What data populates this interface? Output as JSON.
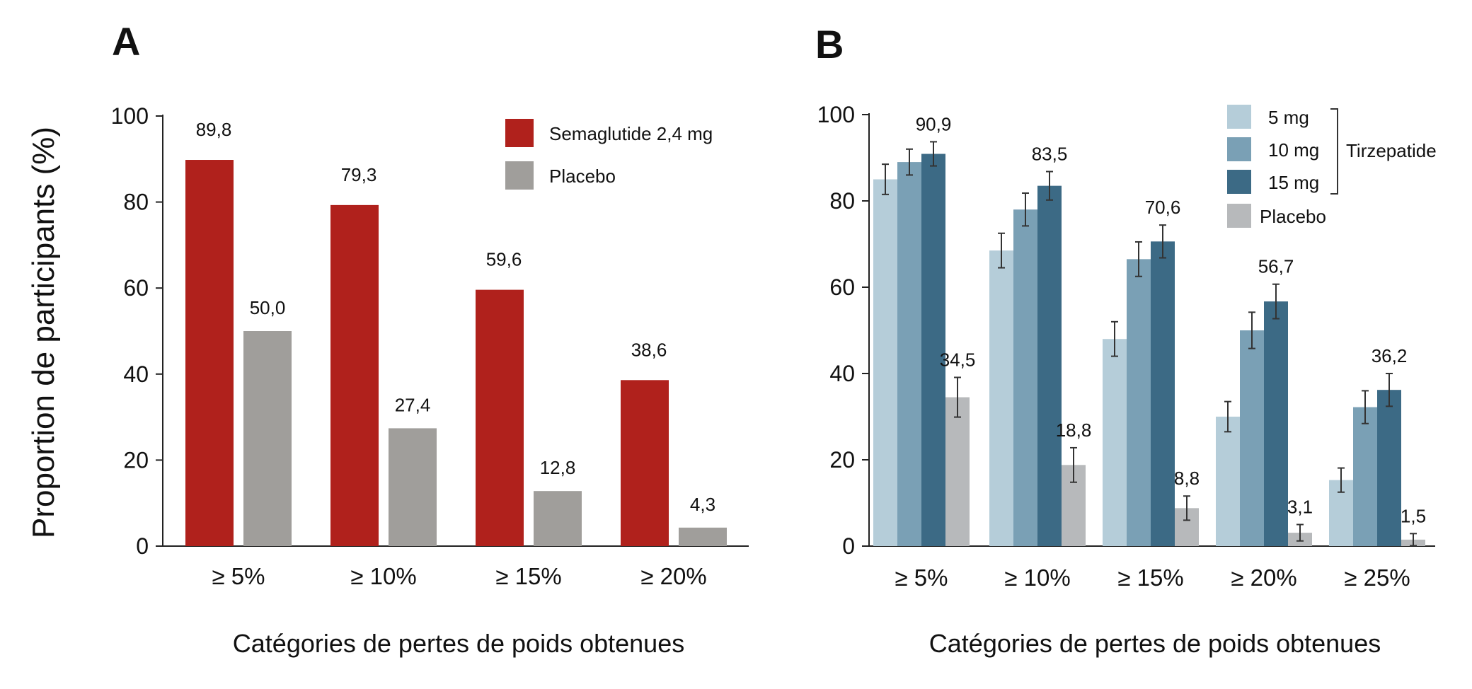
{
  "chart_data": [
    {
      "panel": "A",
      "type": "bar",
      "categories": [
        "≥ 5%",
        "≥ 10%",
        "≥ 15%",
        "≥ 20%"
      ],
      "series": [
        {
          "name": "Semaglutide 2,4 mg",
          "values": [
            89.8,
            79.3,
            59.6,
            38.6
          ],
          "labels": [
            "89,8",
            "79,3",
            "59,6",
            "38,6"
          ],
          "color": "#b0211c"
        },
        {
          "name": "Placebo",
          "values": [
            50.0,
            27.4,
            12.8,
            4.3
          ],
          "labels": [
            "50,0",
            "27,4",
            "12,8",
            "4,3"
          ],
          "color": "#a09e9b"
        }
      ],
      "xlabel": "Catégories de pertes de poids obtenues",
      "ylabel": "Proportion de participants (%)",
      "ylim": [
        0,
        100
      ],
      "yticks": [
        "0",
        "20",
        "40",
        "60",
        "80",
        "100"
      ],
      "legend_position": "top-right",
      "grid": false
    },
    {
      "panel": "B",
      "type": "bar",
      "categories": [
        "≥ 5%",
        "≥ 10%",
        "≥ 15%",
        "≥ 20%",
        "≥ 25%"
      ],
      "series": [
        {
          "name": "5 mg",
          "values": [
            85,
            68.5,
            48,
            30,
            15.3
          ],
          "errors": [
            3.5,
            4,
            4,
            3.5,
            2.8
          ],
          "labels": [
            "",
            "",
            "",
            "",
            ""
          ],
          "color": "#b5cdd9"
        },
        {
          "name": "10 mg",
          "values": [
            89,
            78,
            66.5,
            50,
            32.2
          ],
          "errors": [
            3,
            3.8,
            4,
            4.2,
            3.8
          ],
          "labels": [
            "",
            "",
            "",
            "",
            ""
          ],
          "color": "#7aa0b5"
        },
        {
          "name": "15 mg",
          "values": [
            90.9,
            83.5,
            70.6,
            56.7,
            36.2
          ],
          "errors": [
            2.8,
            3.3,
            3.8,
            4,
            3.8
          ],
          "labels": [
            "90,9",
            "83,5",
            "70,6",
            "56,7",
            "36,2"
          ],
          "color": "#3c6a85"
        },
        {
          "name": "Placebo",
          "values": [
            34.5,
            18.8,
            8.8,
            3.1,
            1.5
          ],
          "errors": [
            4.6,
            4,
            2.8,
            1.9,
            1.4
          ],
          "labels": [
            "34,5",
            "18,8",
            "8,8",
            "3,1",
            "1,5"
          ],
          "color": "#b7b9bb"
        }
      ],
      "legend_group_label": "Tirzepatide",
      "xlabel": "Catégories de pertes de poids obtenues",
      "ylim": [
        0,
        100
      ],
      "yticks": [
        "0",
        "20",
        "40",
        "60",
        "80",
        "100"
      ],
      "legend_position": "top-right",
      "grid": false
    }
  ]
}
